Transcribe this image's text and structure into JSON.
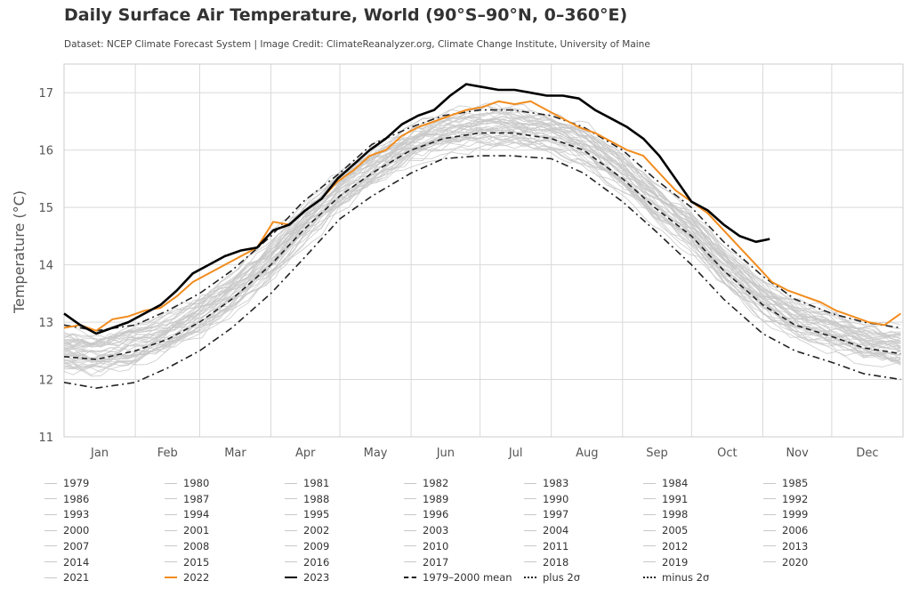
{
  "header": {
    "title": "Daily Surface Air Temperature, World (90°S–90°N, 0–360°E)",
    "subtitle": "Dataset: NCEP Climate Forecast System | Image Credit: ClimateReanalyzer.org, Climate Change Institute, University of Maine"
  },
  "chart_data": {
    "type": "line",
    "title": "Daily Surface Air Temperature, World (90°S–90°N, 0–360°E)",
    "subtitle": "Dataset: NCEP Climate Forecast System | Image Credit: ClimateReanalyzer.org, Climate Change Institute, University of Maine",
    "xlabel": "",
    "ylabel": "Temperature (°C)",
    "ylim": [
      11,
      17.5
    ],
    "yticks": [
      11,
      12,
      13,
      14,
      15,
      16,
      17
    ],
    "xlim": [
      1,
      366
    ],
    "x_unit": "day of year",
    "months": [
      "Jan",
      "Feb",
      "Mar",
      "Apr",
      "May",
      "Jun",
      "Jul",
      "Aug",
      "Sep",
      "Oct",
      "Nov",
      "Dec"
    ],
    "grid": true,
    "legend_position": "bottom",
    "colors": {
      "background_years": "#c8c8c8",
      "y2022": "#f28c1e",
      "y2023": "#000000",
      "stats": "#222222",
      "grid": "#d9d9d9"
    },
    "series": [
      {
        "name": "1979–2000 mean",
        "style": "dashed",
        "x": [
          1,
          15,
          32,
          46,
          60,
          74,
          91,
          105,
          121,
          135,
          152,
          166,
          182,
          196,
          213,
          227,
          244,
          258,
          274,
          288,
          305,
          319,
          335,
          349,
          365
        ],
        "y": [
          12.4,
          12.35,
          12.5,
          12.7,
          13.0,
          13.4,
          14.0,
          14.6,
          15.2,
          15.6,
          16.0,
          16.2,
          16.3,
          16.3,
          16.2,
          16.0,
          15.5,
          15.0,
          14.5,
          13.9,
          13.3,
          12.95,
          12.75,
          12.55,
          12.45
        ]
      },
      {
        "name": "plus 2σ",
        "style": "dash-dot",
        "x": [
          1,
          15,
          32,
          46,
          60,
          74,
          91,
          105,
          121,
          135,
          152,
          166,
          182,
          196,
          213,
          227,
          244,
          258,
          274,
          288,
          305,
          319,
          335,
          349,
          365
        ],
        "y": [
          12.95,
          12.85,
          12.95,
          13.2,
          13.5,
          13.9,
          14.5,
          15.1,
          15.6,
          16.1,
          16.4,
          16.6,
          16.7,
          16.7,
          16.6,
          16.4,
          16.0,
          15.5,
          15.0,
          14.4,
          13.8,
          13.4,
          13.15,
          13.0,
          12.9
        ]
      },
      {
        "name": "minus 2σ",
        "style": "dash-dot",
        "x": [
          1,
          15,
          32,
          46,
          60,
          74,
          91,
          105,
          121,
          135,
          152,
          166,
          182,
          196,
          213,
          227,
          244,
          258,
          274,
          288,
          305,
          319,
          335,
          349,
          365
        ],
        "y": [
          11.95,
          11.85,
          11.95,
          12.2,
          12.5,
          12.9,
          13.5,
          14.1,
          14.8,
          15.2,
          15.6,
          15.85,
          15.9,
          15.9,
          15.85,
          15.6,
          15.1,
          14.6,
          14.0,
          13.4,
          12.8,
          12.5,
          12.3,
          12.1,
          12.0
        ]
      },
      {
        "name": "2022",
        "style": "solid",
        "x": [
          1,
          8,
          15,
          22,
          29,
          36,
          43,
          50,
          57,
          64,
          71,
          78,
          85,
          92,
          99,
          106,
          113,
          120,
          127,
          134,
          141,
          148,
          155,
          162,
          169,
          176,
          183,
          190,
          197,
          204,
          211,
          218,
          225,
          232,
          239,
          246,
          253,
          260,
          267,
          274,
          281,
          288,
          295,
          302,
          309,
          316,
          323,
          330,
          337,
          344,
          351,
          358,
          365
        ],
        "y": [
          12.9,
          12.95,
          12.85,
          13.05,
          13.1,
          13.2,
          13.25,
          13.45,
          13.7,
          13.85,
          14.0,
          14.15,
          14.3,
          14.75,
          14.7,
          14.95,
          15.15,
          15.45,
          15.65,
          15.9,
          16.0,
          16.25,
          16.4,
          16.5,
          16.6,
          16.7,
          16.75,
          16.85,
          16.8,
          16.85,
          16.7,
          16.55,
          16.4,
          16.3,
          16.15,
          16.0,
          15.9,
          15.6,
          15.3,
          15.1,
          14.9,
          14.6,
          14.3,
          14.0,
          13.7,
          13.55,
          13.45,
          13.35,
          13.2,
          13.1,
          13.0,
          12.95,
          13.15
        ]
      },
      {
        "name": "2023",
        "style": "solid",
        "x": [
          1,
          8,
          15,
          22,
          29,
          36,
          43,
          50,
          57,
          64,
          71,
          78,
          85,
          92,
          99,
          106,
          113,
          120,
          127,
          134,
          141,
          148,
          155,
          162,
          169,
          176,
          183,
          190,
          197,
          204,
          211,
          218,
          225,
          232,
          239,
          246,
          253,
          260,
          267,
          274,
          281,
          288,
          295,
          302,
          308
        ],
        "y": [
          13.15,
          12.95,
          12.8,
          12.9,
          13.0,
          13.15,
          13.3,
          13.55,
          13.85,
          14.0,
          14.15,
          14.25,
          14.3,
          14.6,
          14.7,
          14.95,
          15.15,
          15.5,
          15.75,
          16.0,
          16.2,
          16.45,
          16.6,
          16.7,
          16.95,
          17.15,
          17.1,
          17.05,
          17.05,
          17.0,
          16.95,
          16.95,
          16.9,
          16.7,
          16.55,
          16.4,
          16.2,
          15.9,
          15.5,
          15.1,
          14.95,
          14.7,
          14.5,
          14.4,
          14.45
        ]
      }
    ],
    "background_years": [
      "1979",
      "1980",
      "1981",
      "1982",
      "1983",
      "1984",
      "1985",
      "1986",
      "1987",
      "1988",
      "1989",
      "1990",
      "1991",
      "1992",
      "1993",
      "1994",
      "1995",
      "1996",
      "1997",
      "1998",
      "1999",
      "2000",
      "2001",
      "2002",
      "2003",
      "2004",
      "2005",
      "2006",
      "2007",
      "2008",
      "2009",
      "2010",
      "2011",
      "2012",
      "2013",
      "2014",
      "2015",
      "2016",
      "2017",
      "2018",
      "2019",
      "2020",
      "2021"
    ]
  },
  "legend": {
    "items": [
      {
        "label": "1979",
        "color": "#c8c8c8",
        "style": "solid"
      },
      {
        "label": "1980",
        "color": "#c8c8c8",
        "style": "solid"
      },
      {
        "label": "1981",
        "color": "#c8c8c8",
        "style": "solid"
      },
      {
        "label": "1982",
        "color": "#c8c8c8",
        "style": "solid"
      },
      {
        "label": "1983",
        "color": "#c8c8c8",
        "style": "solid"
      },
      {
        "label": "1984",
        "color": "#c8c8c8",
        "style": "solid"
      },
      {
        "label": "1985",
        "color": "#c8c8c8",
        "style": "solid"
      },
      {
        "label": "1986",
        "color": "#c8c8c8",
        "style": "solid"
      },
      {
        "label": "1987",
        "color": "#c8c8c8",
        "style": "solid"
      },
      {
        "label": "1988",
        "color": "#c8c8c8",
        "style": "solid"
      },
      {
        "label": "1989",
        "color": "#c8c8c8",
        "style": "solid"
      },
      {
        "label": "1990",
        "color": "#c8c8c8",
        "style": "solid"
      },
      {
        "label": "1991",
        "color": "#c8c8c8",
        "style": "solid"
      },
      {
        "label": "1992",
        "color": "#c8c8c8",
        "style": "solid"
      },
      {
        "label": "1993",
        "color": "#c8c8c8",
        "style": "solid"
      },
      {
        "label": "1994",
        "color": "#c8c8c8",
        "style": "solid"
      },
      {
        "label": "1995",
        "color": "#c8c8c8",
        "style": "solid"
      },
      {
        "label": "1996",
        "color": "#c8c8c8",
        "style": "solid"
      },
      {
        "label": "1997",
        "color": "#c8c8c8",
        "style": "solid"
      },
      {
        "label": "1998",
        "color": "#c8c8c8",
        "style": "solid"
      },
      {
        "label": "1999",
        "color": "#c8c8c8",
        "style": "solid"
      },
      {
        "label": "2000",
        "color": "#c8c8c8",
        "style": "solid"
      },
      {
        "label": "2001",
        "color": "#c8c8c8",
        "style": "solid"
      },
      {
        "label": "2002",
        "color": "#c8c8c8",
        "style": "solid"
      },
      {
        "label": "2003",
        "color": "#c8c8c8",
        "style": "solid"
      },
      {
        "label": "2004",
        "color": "#c8c8c8",
        "style": "solid"
      },
      {
        "label": "2005",
        "color": "#c8c8c8",
        "style": "solid"
      },
      {
        "label": "2006",
        "color": "#c8c8c8",
        "style": "solid"
      },
      {
        "label": "2007",
        "color": "#c8c8c8",
        "style": "solid"
      },
      {
        "label": "2008",
        "color": "#c8c8c8",
        "style": "solid"
      },
      {
        "label": "2009",
        "color": "#c8c8c8",
        "style": "solid"
      },
      {
        "label": "2010",
        "color": "#c8c8c8",
        "style": "solid"
      },
      {
        "label": "2011",
        "color": "#c8c8c8",
        "style": "solid"
      },
      {
        "label": "2012",
        "color": "#c8c8c8",
        "style": "solid"
      },
      {
        "label": "2013",
        "color": "#c8c8c8",
        "style": "solid"
      },
      {
        "label": "2014",
        "color": "#c8c8c8",
        "style": "solid"
      },
      {
        "label": "2015",
        "color": "#c8c8c8",
        "style": "solid"
      },
      {
        "label": "2016",
        "color": "#c8c8c8",
        "style": "solid"
      },
      {
        "label": "2017",
        "color": "#c8c8c8",
        "style": "solid"
      },
      {
        "label": "2018",
        "color": "#c8c8c8",
        "style": "solid"
      },
      {
        "label": "2019",
        "color": "#c8c8c8",
        "style": "solid"
      },
      {
        "label": "2020",
        "color": "#c8c8c8",
        "style": "solid"
      },
      {
        "label": "2021",
        "color": "#c8c8c8",
        "style": "solid"
      },
      {
        "label": "2022",
        "color": "#f28c1e",
        "style": "solid"
      },
      {
        "label": "2023",
        "color": "#000000",
        "style": "solid"
      },
      {
        "label": "1979–2000 mean",
        "color": "#222222",
        "style": "dashed"
      },
      {
        "label": "plus 2σ",
        "color": "#222222",
        "style": "dash-dot"
      },
      {
        "label": "minus 2σ",
        "color": "#222222",
        "style": "dash-dot"
      }
    ]
  }
}
